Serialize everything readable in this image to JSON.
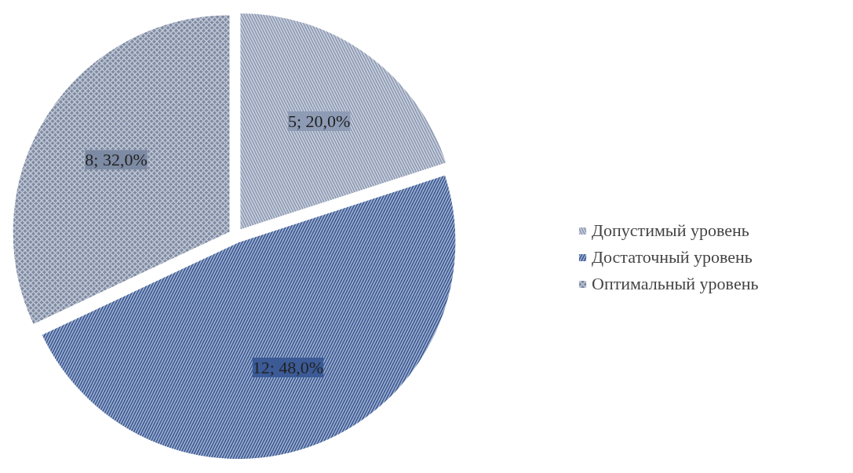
{
  "chart_data": {
    "type": "pie",
    "categories": [
      "Допустимый уровень",
      "Достаточный уровень",
      "Оптимальный уровень"
    ],
    "values": [
      5,
      12,
      8
    ],
    "colors": [
      "#8e9bb5",
      "#3b5a96",
      "#7d8aa3"
    ],
    "value_labels": [
      "5; 20,0%",
      "12; 48,0%",
      "8; 32,0%"
    ],
    "legend": "right"
  }
}
